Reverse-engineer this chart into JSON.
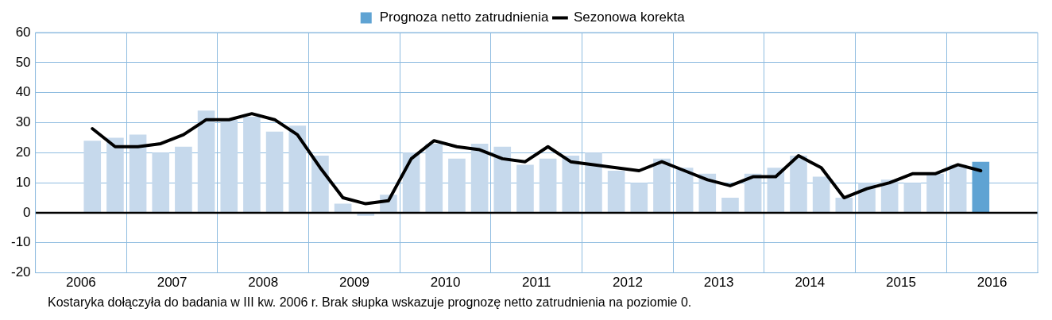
{
  "chart_data": {
    "type": "bar",
    "x": [
      2006.625,
      2006.875,
      2007.125,
      2007.375,
      2007.625,
      2007.875,
      2008.125,
      2008.375,
      2008.625,
      2008.875,
      2009.125,
      2009.375,
      2009.625,
      2009.875,
      2010.125,
      2010.375,
      2010.625,
      2010.875,
      2011.125,
      2011.375,
      2011.625,
      2011.875,
      2012.125,
      2012.375,
      2012.625,
      2012.875,
      2013.125,
      2013.375,
      2013.625,
      2013.875,
      2014.125,
      2014.375,
      2014.625,
      2014.875,
      2015.125,
      2015.375,
      2015.625,
      2015.875,
      2016.125,
      2016.375
    ],
    "xlim": [
      2006,
      2017
    ],
    "xticks": [
      {
        "value": 2006.5,
        "label": "2006"
      },
      {
        "value": 2007,
        "label": null
      },
      {
        "value": 2007.5,
        "label": "2007"
      },
      {
        "value": 2008,
        "label": null
      },
      {
        "value": 2008.5,
        "label": "2008"
      },
      {
        "value": 2009,
        "label": null
      },
      {
        "value": 2009.5,
        "label": "2009"
      },
      {
        "value": 2010,
        "label": null
      },
      {
        "value": 2010.5,
        "label": "2010"
      },
      {
        "value": 2011,
        "label": null
      },
      {
        "value": 2011.5,
        "label": "2011"
      },
      {
        "value": 2012,
        "label": null
      },
      {
        "value": 2012.5,
        "label": "2012"
      },
      {
        "value": 2013,
        "label": null
      },
      {
        "value": 2013.5,
        "label": "2013"
      },
      {
        "value": 2014,
        "label": null
      },
      {
        "value": 2014.5,
        "label": "2014"
      },
      {
        "value": 2015,
        "label": null
      },
      {
        "value": 2015.5,
        "label": "2015"
      },
      {
        "value": 2016,
        "label": null
      },
      {
        "value": 2016.5,
        "label": "2016"
      }
    ],
    "ylim": [
      -20,
      60
    ],
    "yticks": [
      -20,
      -10,
      0,
      10,
      20,
      30,
      40,
      50,
      60
    ],
    "grid": true,
    "legend": "top",
    "marker": "none",
    "series": [
      {
        "name": "Prognoza netto zatrudnienia",
        "color": "#5fa3d3",
        "colors": [
          "#c6d9ec",
          "#c6d9ec",
          "#c6d9ec",
          "#c6d9ec",
          "#c6d9ec",
          "#c6d9ec",
          "#c6d9ec",
          "#c6d9ec",
          "#c6d9ec",
          "#c6d9ec",
          "#c6d9ec",
          "#c6d9ec",
          "#c6d9ec",
          "#c6d9ec",
          "#c6d9ec",
          "#c6d9ec",
          "#c6d9ec",
          "#c6d9ec",
          "#c6d9ec",
          "#c6d9ec",
          "#c6d9ec",
          "#c6d9ec",
          "#c6d9ec",
          "#c6d9ec",
          "#c6d9ec",
          "#c6d9ec",
          "#c6d9ec",
          "#c6d9ec",
          "#c6d9ec",
          "#c6d9ec",
          "#c6d9ec",
          "#c6d9ec",
          "#c6d9ec",
          "#c6d9ec",
          "#c6d9ec",
          "#c6d9ec",
          "#c6d9ec",
          "#c6d9ec",
          "#c6d9ec",
          "#5fa3d3"
        ],
        "values": [
          24,
          25,
          26,
          20,
          22,
          34,
          31,
          32,
          27,
          29,
          19,
          3,
          -1,
          6,
          20,
          23,
          18,
          23,
          22,
          16,
          18,
          19,
          20,
          14,
          10,
          18,
          15,
          13,
          5,
          13,
          15,
          19,
          12,
          5,
          10,
          11,
          10,
          13,
          16,
          17
        ]
      },
      {
        "name": "Sezonowa korekta",
        "type": "line",
        "color": "#000000",
        "values": [
          28,
          22,
          22,
          23,
          26,
          31,
          31,
          33,
          31,
          26,
          15,
          5,
          3,
          4,
          18,
          24,
          22,
          21,
          18,
          17,
          22,
          17,
          16,
          15,
          14,
          17,
          14,
          11,
          9,
          12,
          12,
          19,
          15,
          5,
          8,
          10,
          13,
          13,
          16,
          14
        ]
      }
    ],
    "ref_lines": [
      {
        "axis": "y",
        "value": 0,
        "color": "#000000"
      }
    ],
    "annotations": [
      "Kostaryka dołączyła do badania w III kw. 2006 r. Brak słupka wskazuje prognozę netto zatrudnienia na poziomie 0."
    ]
  }
}
